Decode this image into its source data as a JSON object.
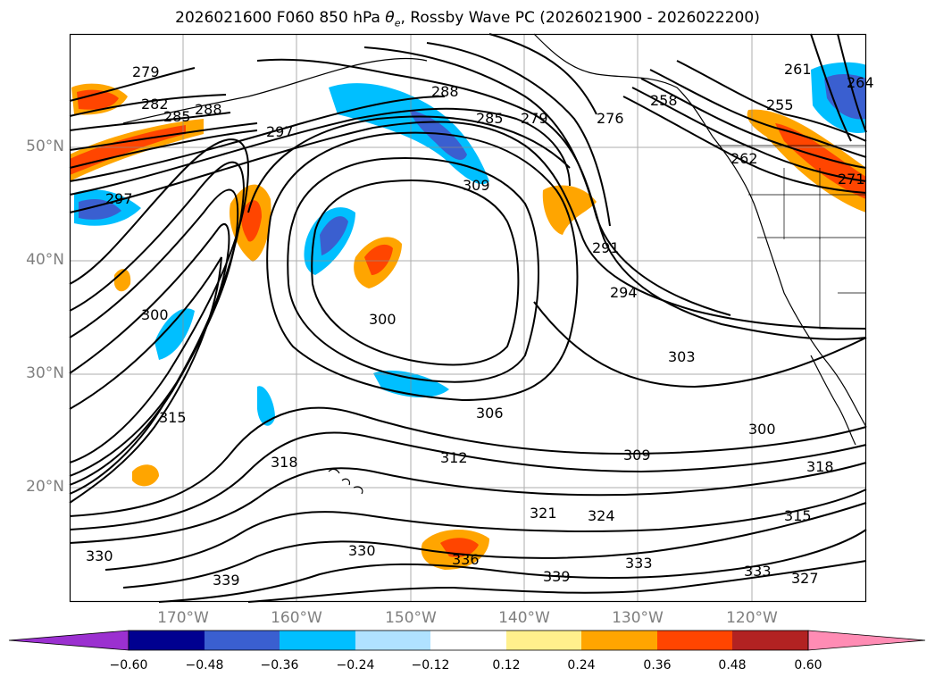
{
  "title": {
    "run": "2026021600 F060 850 hPa ",
    "var": "θ",
    "var_sub": "e",
    "rest": ", Rossby Wave PC (2026021900 - 2026022200)"
  },
  "lat_labels": [
    "50°N",
    "40°N",
    "30°N",
    "20°N"
  ],
  "lon_labels": [
    "170°W",
    "160°W",
    "150°W",
    "140°W",
    "130°W",
    "120°W"
  ],
  "contour_labels": [
    "279",
    "282",
    "285",
    "288",
    "297",
    "297",
    "288",
    "285",
    "279",
    "276",
    "258",
    "261",
    "264",
    "255",
    "262",
    "271",
    "309",
    "291",
    "294",
    "300",
    "300",
    "303",
    "306",
    "312",
    "309",
    "300",
    "318",
    "315",
    "318",
    "321",
    "324",
    "330",
    "336",
    "339",
    "333",
    "333",
    "327",
    "330",
    "339",
    "315"
  ],
  "colorbar": {
    "colors": [
      "#9b30d0",
      "#000090",
      "#3a5fd0",
      "#00bfff",
      "#b0e2ff",
      "#ffffff",
      "#fff08c",
      "#ffa500",
      "#ff4500",
      "#b22222",
      "#ff8cb4"
    ],
    "tick_labels": [
      "−0.60",
      "−0.48",
      "−0.36",
      "−0.24",
      "−0.12",
      "0.12",
      "0.24",
      "0.36",
      "0.48",
      "0.60"
    ]
  }
}
